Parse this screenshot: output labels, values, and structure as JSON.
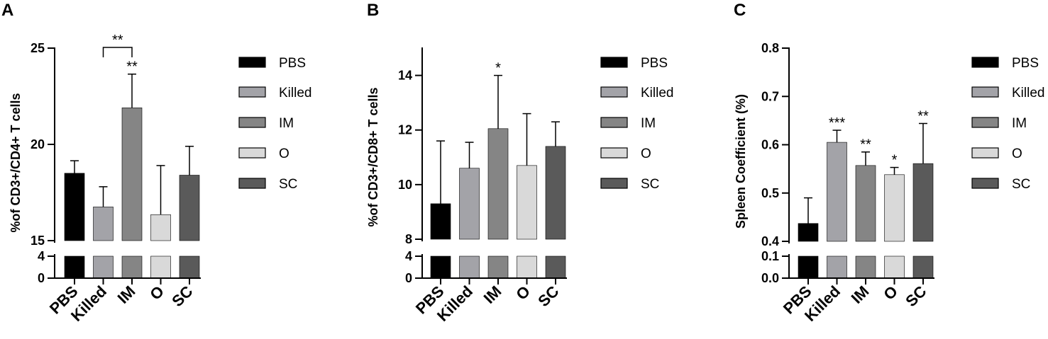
{
  "chart_data": [
    {
      "panel": "A",
      "type": "bar",
      "ylabel": "%of CD3+/CD4+ T cells",
      "categories": [
        "PBS",
        "Killed",
        "IM",
        "O",
        "SC"
      ],
      "values": [
        18.5,
        16.75,
        21.9,
        16.35,
        18.4
      ],
      "errors": [
        0.65,
        1.05,
        1.75,
        2.55,
        1.5
      ],
      "colors": [
        "#000000",
        "#a3a3a8",
        "#858585",
        "#d9d9d9",
        "#5a5a5a"
      ],
      "axis_break": true,
      "ylim_lower": [
        0,
        4
      ],
      "ylim_upper": [
        15,
        25
      ],
      "yticks_lower": [
        0,
        4
      ],
      "yticks_upper": [
        15,
        20,
        25
      ],
      "significance": [
        {
          "category": "IM",
          "label": "**"
        }
      ],
      "bracket": {
        "from": "Killed",
        "to": "IM",
        "label": "**"
      },
      "legend": [
        "PBS",
        "Killed",
        "IM",
        "O",
        "SC"
      ],
      "legend_position": "right"
    },
    {
      "panel": "B",
      "type": "bar",
      "ylabel": "%of CD3+/CD8+ T cells",
      "categories": [
        "PBS",
        "Killed",
        "IM",
        "O",
        "SC"
      ],
      "values": [
        9.3,
        10.6,
        12.05,
        10.7,
        11.4
      ],
      "errors": [
        2.3,
        0.95,
        1.95,
        1.9,
        0.9
      ],
      "colors": [
        "#000000",
        "#a3a3a8",
        "#858585",
        "#d9d9d9",
        "#5a5a5a"
      ],
      "axis_break": true,
      "ylim_lower": [
        0,
        4
      ],
      "ylim_upper": [
        8,
        15
      ],
      "yticks_lower": [
        0,
        4
      ],
      "yticks_upper": [
        8,
        10,
        12,
        14
      ],
      "significance": [
        {
          "category": "IM",
          "label": "*"
        }
      ],
      "legend": [
        "PBS",
        "Killed",
        "IM",
        "O",
        "SC"
      ],
      "legend_position": "right"
    },
    {
      "panel": "C",
      "type": "bar",
      "ylabel": "Spleen Coefficient (%)",
      "categories": [
        "PBS",
        "Killed",
        "IM",
        "O",
        "SC"
      ],
      "values": [
        0.437,
        0.605,
        0.557,
        0.538,
        0.561
      ],
      "errors": [
        0.053,
        0.025,
        0.028,
        0.015,
        0.083
      ],
      "colors": [
        "#000000",
        "#a3a3a8",
        "#858585",
        "#d9d9d9",
        "#5a5a5a"
      ],
      "axis_break": true,
      "ylim_lower": [
        0.0,
        0.1
      ],
      "ylim_upper": [
        0.4,
        0.8
      ],
      "yticks_lower": [
        "0.0",
        "0.1"
      ],
      "yticks_upper": [
        "0.4",
        "0.5",
        "0.6",
        "0.7",
        "0.8"
      ],
      "significance": [
        {
          "category": "Killed",
          "label": "***"
        },
        {
          "category": "IM",
          "label": "**"
        },
        {
          "category": "O",
          "label": "*"
        },
        {
          "category": "SC",
          "label": "**"
        }
      ],
      "legend": [
        "PBS",
        "Killed",
        "IM",
        "O",
        "SC"
      ],
      "legend_position": "right"
    }
  ]
}
